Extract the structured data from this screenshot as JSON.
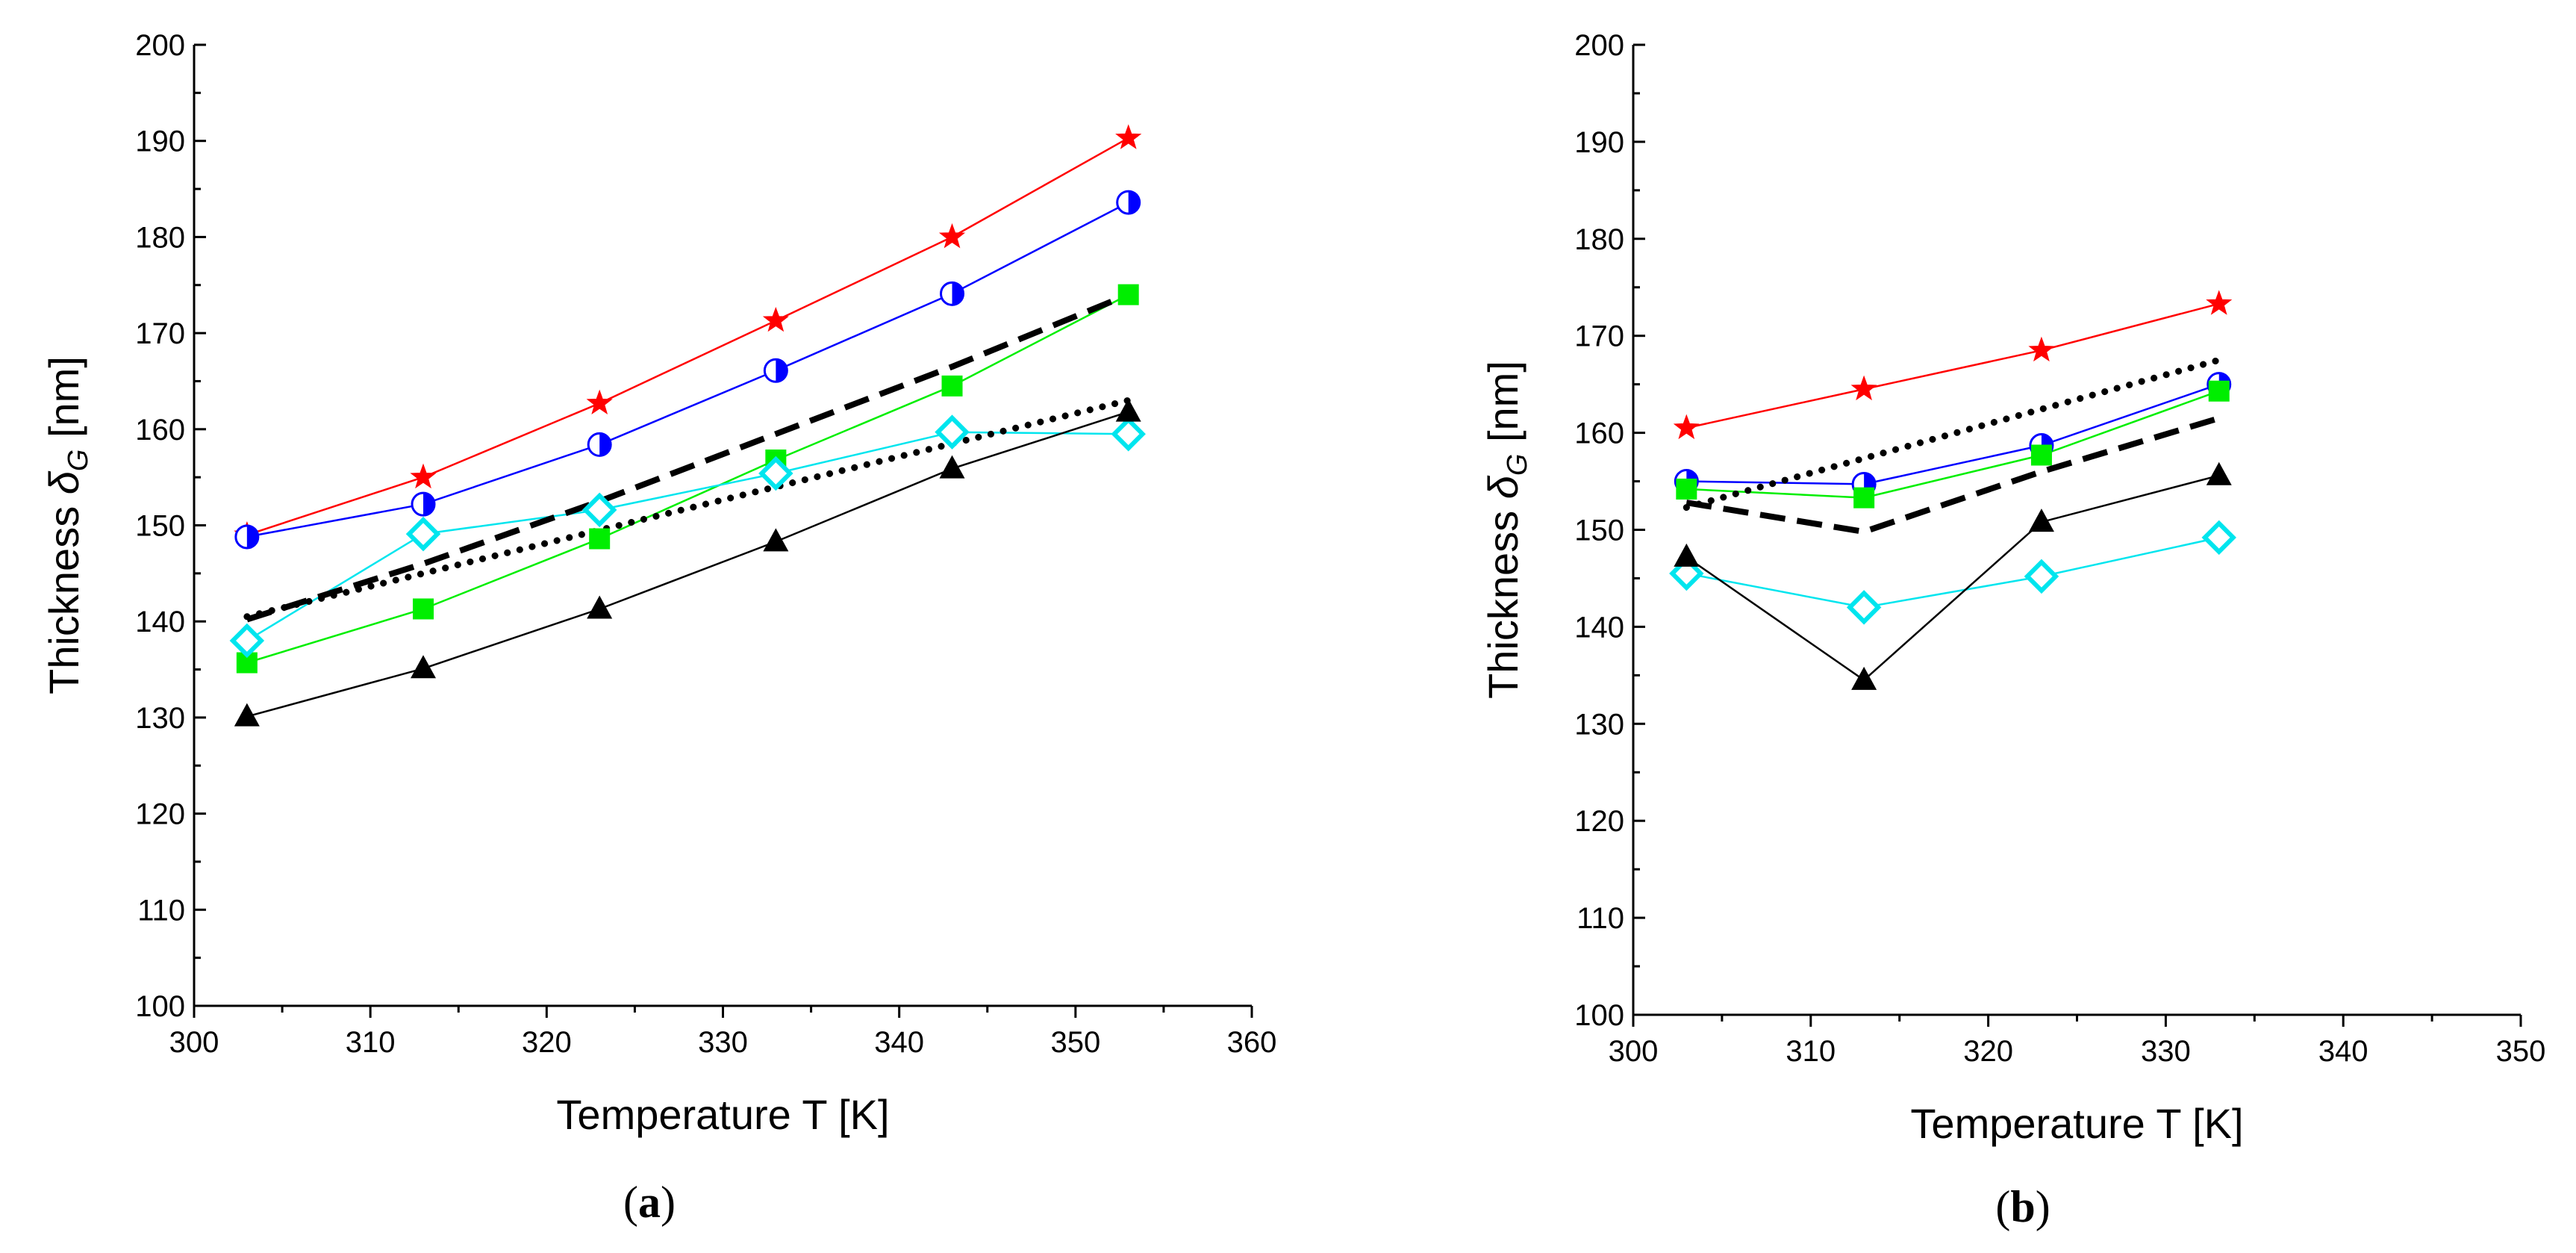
{
  "chart_data": [
    {
      "type": "line",
      "panel_label_letter": "a",
      "xlabel": "Temperature T [K]",
      "ylabel_prefix": "Thickness ",
      "ylabel_symbol": "δ",
      "ylabel_subscript": "G",
      "ylabel_suffix": " [nm]",
      "xlim": [
        300,
        360
      ],
      "ylim": [
        100,
        200
      ],
      "xticks": [
        300,
        310,
        320,
        330,
        340,
        350,
        360
      ],
      "yticks": [
        100,
        110,
        120,
        130,
        140,
        150,
        160,
        170,
        180,
        190,
        200
      ],
      "grid": false,
      "legend": "none",
      "series": [
        {
          "marker": "star",
          "color": "#ff0000",
          "line": "solid",
          "points": [
            [
              303,
              149
            ],
            [
              313,
              155
            ],
            [
              323,
              162.7
            ],
            [
              333,
              171.3
            ],
            [
              343,
              180
            ],
            [
              353,
              190.3
            ]
          ]
        },
        {
          "marker": "half-circle",
          "color": "#0000ff",
          "line": "solid",
          "points": [
            [
              303,
              148.8
            ],
            [
              313,
              152.2
            ],
            [
              323,
              158.4
            ],
            [
              333,
              166.1
            ],
            [
              343,
              174.1
            ],
            [
              353,
              183.6
            ]
          ]
        },
        {
          "marker": "square",
          "color": "#00ee00",
          "line": "solid",
          "points": [
            [
              303,
              135.7
            ],
            [
              313,
              141.3
            ],
            [
              323,
              148.6
            ],
            [
              333,
              156.8
            ],
            [
              343,
              164.5
            ],
            [
              353,
              174
            ]
          ]
        },
        {
          "marker": "diamond",
          "color": "#00e5ee",
          "line": "solid",
          "points": [
            [
              303,
              138
            ],
            [
              313,
              149.1
            ],
            [
              323,
              151.6
            ],
            [
              333,
              155.4
            ],
            [
              343,
              159.7
            ],
            [
              353,
              159.5
            ]
          ]
        },
        {
          "marker": "triangle",
          "color": "#000000",
          "line": "solid",
          "points": [
            [
              303,
              130.1
            ],
            [
              313,
              135.1
            ],
            [
              323,
              141.3
            ],
            [
              333,
              148.3
            ],
            [
              343,
              155.9
            ],
            [
              353,
              161.8
            ]
          ]
        },
        {
          "marker": "none",
          "color": "#000000",
          "line": "dash",
          "points": [
            [
              303,
              140.2
            ],
            [
              313,
              146
            ],
            [
              323,
              152.5
            ],
            [
              333,
              159.5
            ],
            [
              343,
              166.5
            ],
            [
              353,
              174
            ]
          ]
        },
        {
          "marker": "none",
          "color": "#000000",
          "line": "dot",
          "points": [
            [
              303,
              140.5
            ],
            [
              353,
              163
            ]
          ]
        }
      ]
    },
    {
      "type": "line",
      "panel_label_letter": "b",
      "xlabel": "Temperature T [K]",
      "ylabel_prefix": "Thickness ",
      "ylabel_symbol": "δ",
      "ylabel_subscript": "G",
      "ylabel_suffix": " [nm]",
      "xlim": [
        300,
        350
      ],
      "ylim": [
        100,
        200
      ],
      "xticks": [
        300,
        310,
        320,
        330,
        340,
        350
      ],
      "yticks": [
        100,
        110,
        120,
        130,
        140,
        150,
        160,
        170,
        180,
        190,
        200
      ],
      "grid": false,
      "legend": "none",
      "series": [
        {
          "marker": "star",
          "color": "#ff0000",
          "line": "solid",
          "points": [
            [
              303,
              160.5
            ],
            [
              313,
              164.5
            ],
            [
              323,
              168.5
            ],
            [
              333,
              173.3
            ]
          ]
        },
        {
          "marker": "half-circle",
          "color": "#0000ff",
          "line": "solid",
          "points": [
            [
              303,
              155
            ],
            [
              313,
              154.7
            ],
            [
              323,
              158.7
            ],
            [
              333,
              165
            ]
          ]
        },
        {
          "marker": "square",
          "color": "#00ee00",
          "line": "solid",
          "points": [
            [
              303,
              154.2
            ],
            [
              313,
              153.3
            ],
            [
              323,
              157.7
            ],
            [
              333,
              164.3
            ]
          ]
        },
        {
          "marker": "diamond",
          "color": "#00e5ee",
          "line": "solid",
          "points": [
            [
              303,
              145.5
            ],
            [
              313,
              142
            ],
            [
              323,
              145.2
            ],
            [
              333,
              149.2
            ]
          ]
        },
        {
          "marker": "triangle",
          "color": "#000000",
          "line": "solid",
          "points": [
            [
              303,
              147.2
            ],
            [
              313,
              134.5
            ],
            [
              323,
              150.8
            ],
            [
              333,
              155.6
            ]
          ]
        },
        {
          "marker": "none",
          "color": "#000000",
          "line": "dash",
          "points": [
            [
              303,
              152.8
            ],
            [
              313,
              149.8
            ],
            [
              323,
              156
            ],
            [
              333,
              161.5
            ]
          ]
        },
        {
          "marker": "none",
          "color": "#000000",
          "line": "dot",
          "points": [
            [
              303,
              152.3
            ],
            [
              333,
              167.5
            ]
          ]
        }
      ]
    }
  ]
}
